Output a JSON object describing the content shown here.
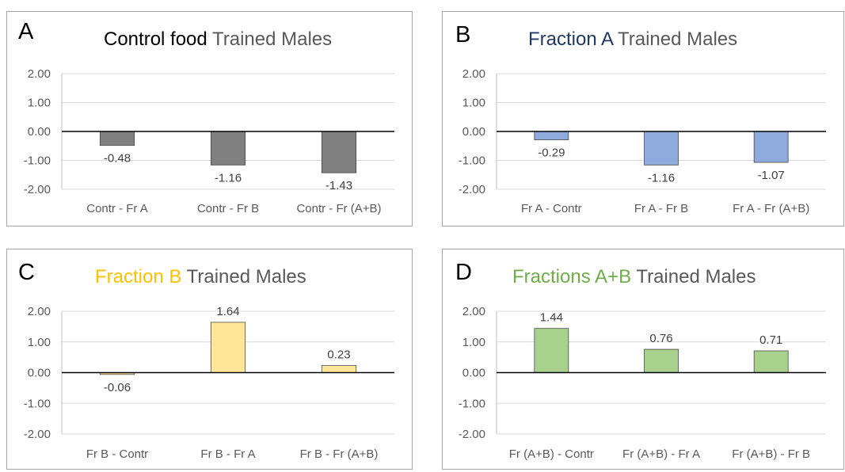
{
  "chart_data": [
    {
      "type": "bar",
      "letter": "A",
      "title_accent": "Control food",
      "title_rest": "Trained Males",
      "accent_color": "#000000",
      "bar_color": "#808080",
      "categories": [
        "Contr - Fr A",
        "Contr - Fr B",
        "Contr - Fr (A+B)"
      ],
      "values": [
        -0.48,
        -1.16,
        -1.43
      ],
      "value_labels": [
        "-0.48",
        "-1.16",
        "-1.43"
      ],
      "yticks": [
        "2.00",
        "1.00",
        "0.00",
        "-1.00",
        "-2.00"
      ],
      "ylim": [
        -2,
        2
      ],
      "grid": true
    },
    {
      "type": "bar",
      "letter": "B",
      "title_accent": "Fraction A",
      "title_rest": "Trained Males",
      "accent_color": "#1f3864",
      "bar_color": "#8faadc",
      "categories": [
        "Fr A - Contr",
        "Fr A - Fr B",
        "Fr A - Fr (A+B)"
      ],
      "values": [
        -0.29,
        -1.16,
        -1.07
      ],
      "value_labels": [
        "-0.29",
        "-1.16",
        "-1.07"
      ],
      "yticks": [
        "2.00",
        "1.00",
        "0.00",
        "-1.00",
        "-2.00"
      ],
      "ylim": [
        -2,
        2
      ],
      "grid": true
    },
    {
      "type": "bar",
      "letter": "C",
      "title_accent": "Fraction B",
      "title_rest": "Trained Males",
      "accent_color": "#ffc000",
      "bar_color": "#ffe699",
      "categories": [
        "Fr B - Contr",
        "Fr B - Fr A",
        "Fr B - Fr (A+B)"
      ],
      "values": [
        -0.06,
        1.64,
        0.23
      ],
      "value_labels": [
        "-0.06",
        "1.64",
        "0.23"
      ],
      "yticks": [
        "2.00",
        "1.00",
        "0.00",
        "-1.00",
        "-2.00"
      ],
      "ylim": [
        -2,
        2
      ],
      "grid": true
    },
    {
      "type": "bar",
      "letter": "D",
      "title_accent": "Fractions A+B",
      "title_rest": "Trained Males",
      "accent_color": "#70ad47",
      "bar_color": "#a9d18e",
      "categories": [
        "Fr (A+B) - Contr",
        "Fr (A+B) - Fr A",
        "Fr (A+B) - Fr B"
      ],
      "values": [
        1.44,
        0.76,
        0.71
      ],
      "value_labels": [
        "1.44",
        "0.76",
        "0.71"
      ],
      "yticks": [
        "2.00",
        "1.00",
        "0.00",
        "-1.00",
        "-2.00"
      ],
      "ylim": [
        -2,
        2
      ],
      "grid": true
    }
  ]
}
